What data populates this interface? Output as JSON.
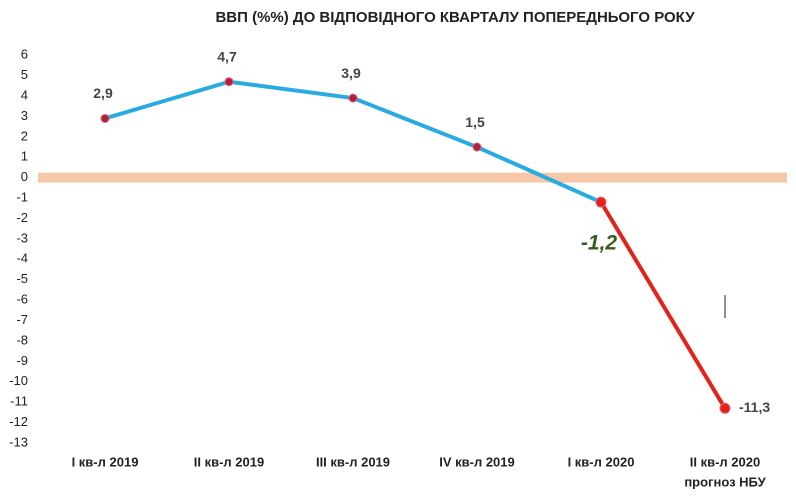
{
  "chart_data": {
    "type": "line",
    "title": "ВВП (%%) ДО ВІДПОВІДНОГО КВАРТАЛУ ПОПЕРЕДНЬОГО РОКУ",
    "categories": [
      "I кв-л 2019",
      "II кв-л 2019",
      "III кв-л 2019",
      "IV кв-л 2019",
      "I кв-л 2020",
      "II кв-л 2020"
    ],
    "annotation": "прогноз НБУ",
    "series": [
      {
        "color": "#29abe2",
        "values": [
          2.9,
          4.7,
          3.9,
          1.5,
          -1.2,
          null
        ],
        "value_labels": [
          "2,9",
          "4,7",
          "3,9",
          "1,5",
          "-1,2",
          null
        ]
      },
      {
        "color": "#e2231a",
        "values": [
          null,
          null,
          null,
          null,
          -1.2,
          -11.3
        ],
        "value_labels": [
          null,
          null,
          null,
          null,
          null,
          "-11,3"
        ]
      }
    ],
    "ylim": [
      -13,
      6.5
    ],
    "yticks": [
      -13,
      -12,
      -11,
      -10,
      -9,
      -8,
      -7,
      -6,
      -5,
      -4,
      -3,
      -2,
      -1,
      0,
      1,
      2,
      3,
      4,
      5,
      6
    ],
    "grid": false
  }
}
